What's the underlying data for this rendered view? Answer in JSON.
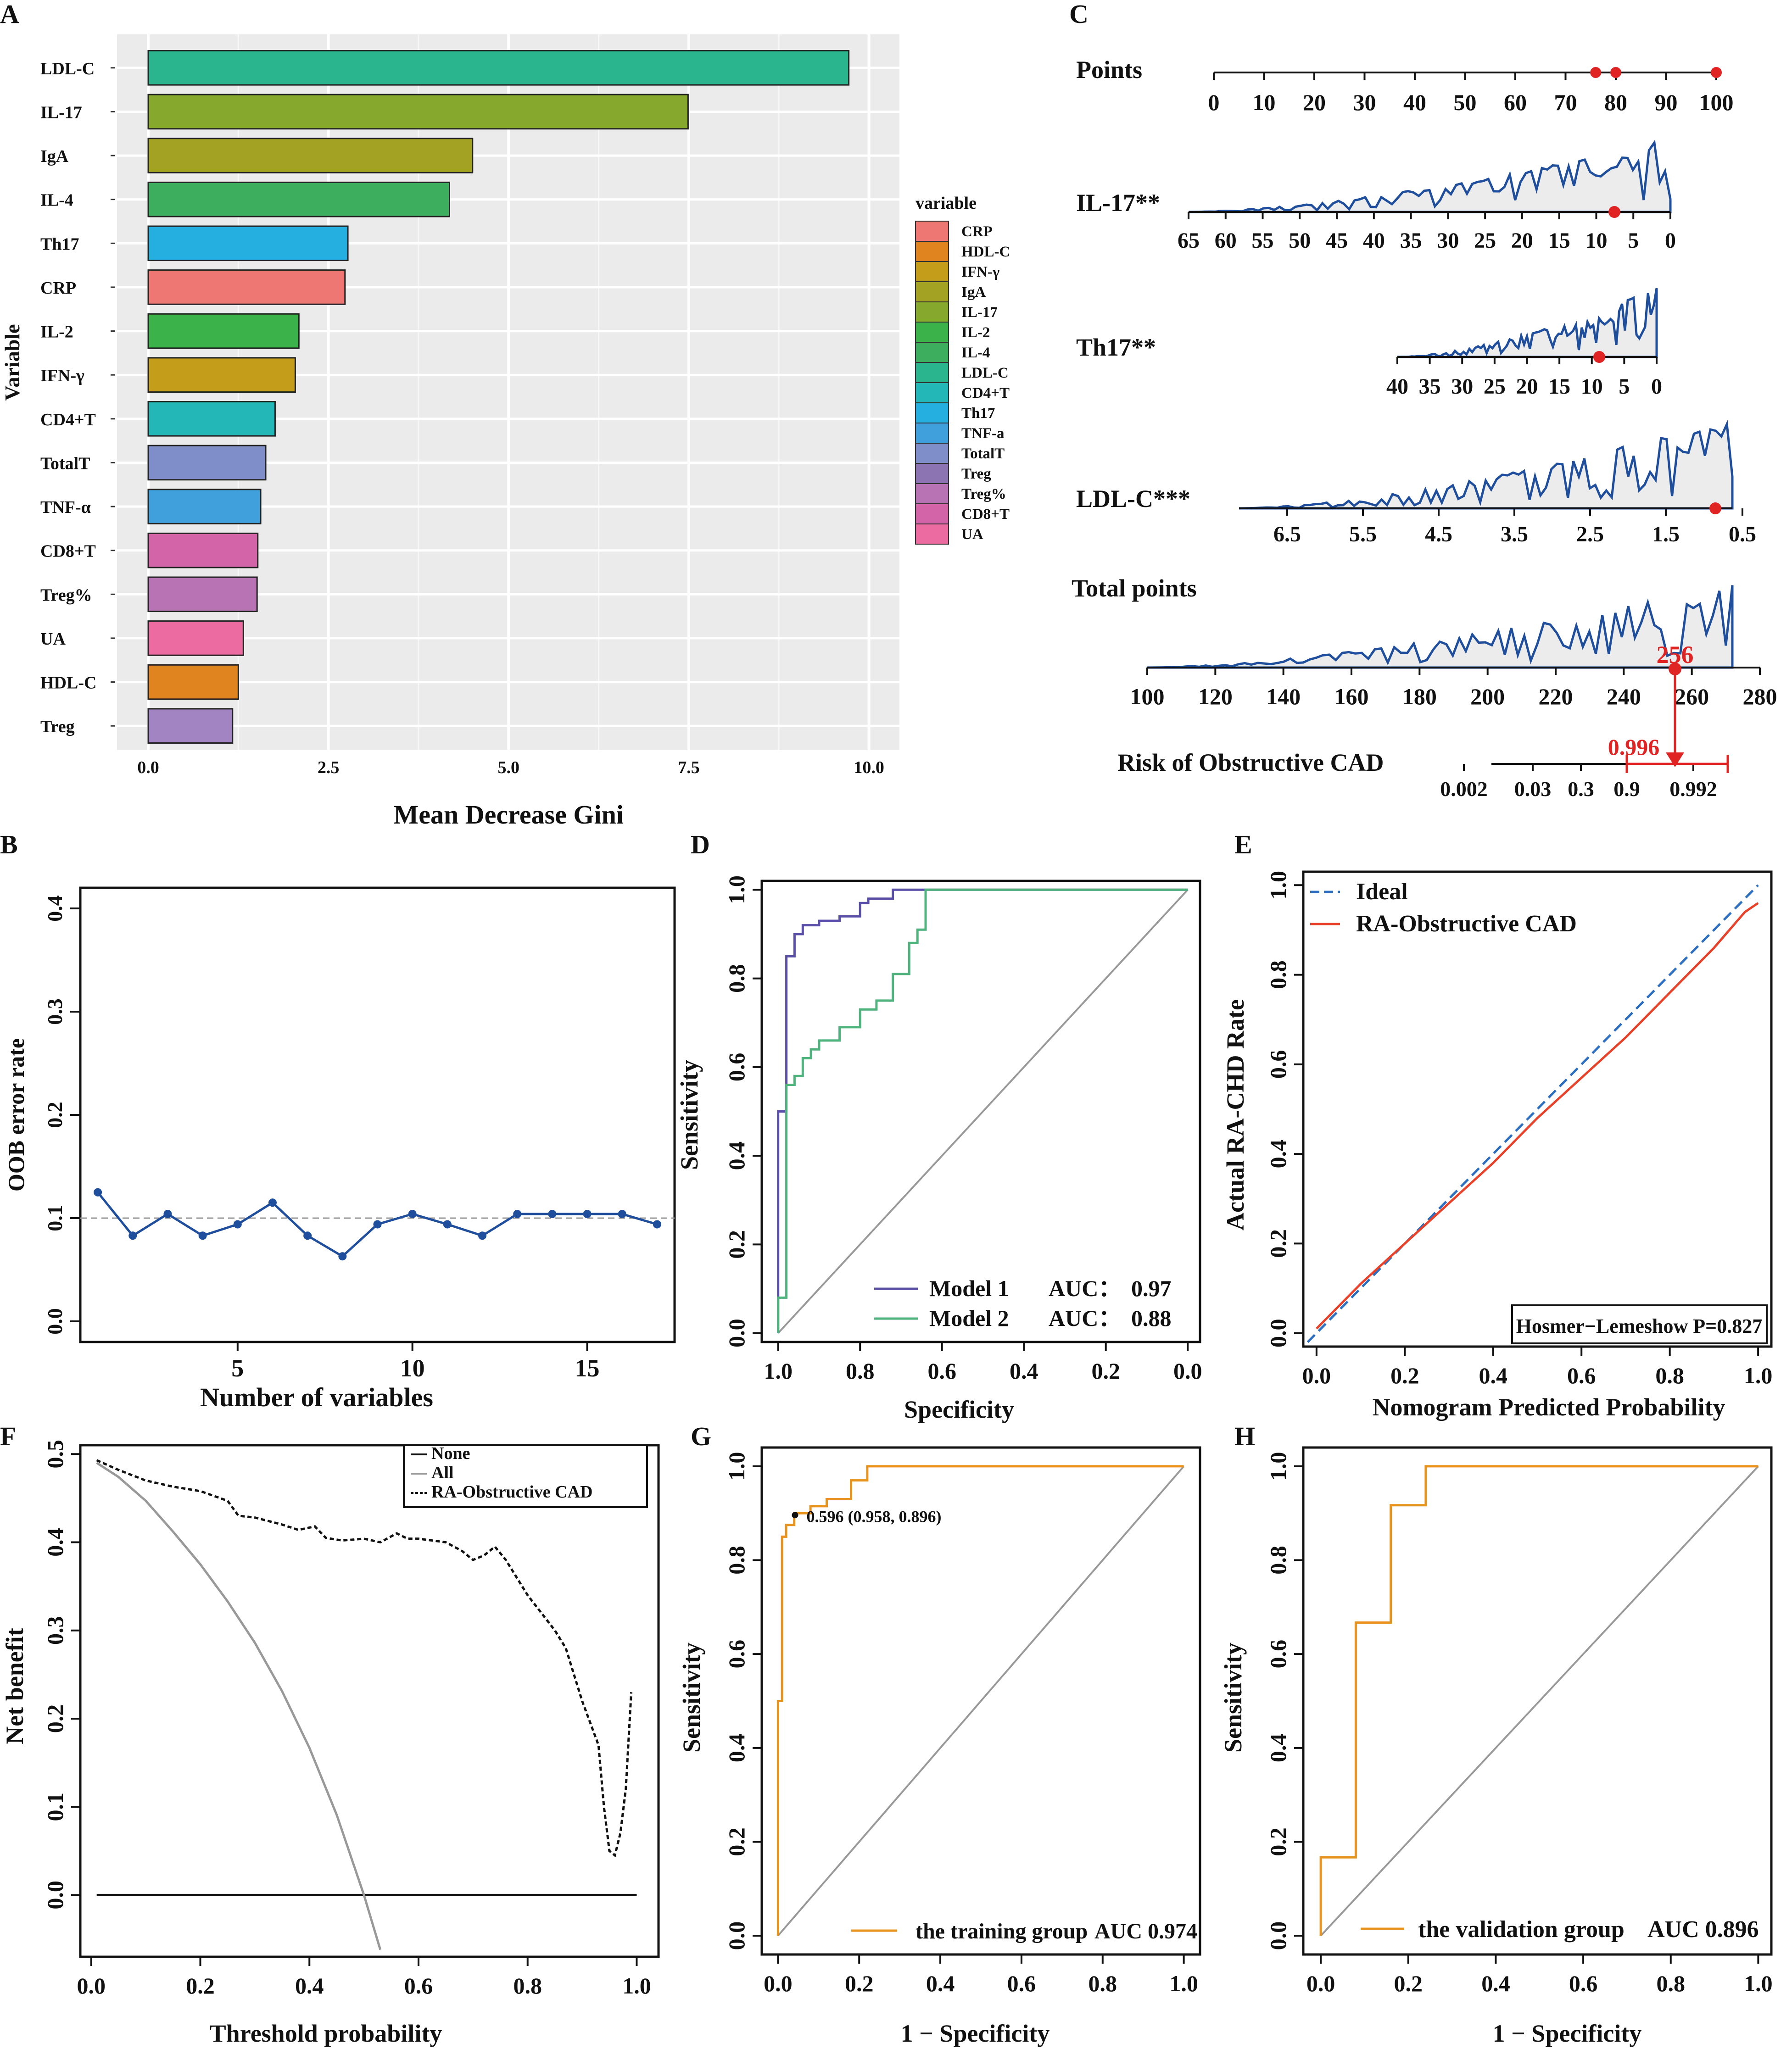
{
  "panel_labels": [
    "A",
    "B",
    "C",
    "D",
    "E",
    "F",
    "G",
    "H"
  ],
  "chart_data": [
    {
      "id": "A",
      "type": "bar",
      "orientation": "horizontal",
      "xlabel": "Mean Decrease Gini",
      "ylabel": "Variable",
      "xlim": [
        0,
        10
      ],
      "xticks": [
        0,
        2.5,
        5,
        7.5,
        10
      ],
      "xtick_labels": [
        "0.0",
        "2.5",
        "5.0",
        "7.5",
        "10.0"
      ],
      "categories": [
        "LDL-C",
        "IL-17",
        "IgA",
        "IL-4",
        "Th17",
        "CRP",
        "IL-2",
        "IFN-γ",
        "CD4+T",
        "TotalT",
        "TNF-α",
        "CD8+T",
        "Treg%",
        "UA",
        "HDL-C",
        "Treg"
      ],
      "values": [
        9.72,
        7.49,
        4.5,
        4.18,
        2.77,
        2.73,
        2.09,
        2.04,
        1.76,
        1.63,
        1.56,
        1.52,
        1.51,
        1.32,
        1.25,
        1.17
      ],
      "colors": [
        "#2bb58e",
        "#86a82c",
        "#a3a223",
        "#3cae5d",
        "#25aee0",
        "#ee7673",
        "#3bb24a",
        "#c49d1a",
        "#23b8b7",
        "#7f8ec8",
        "#3fa0dc",
        "#d464a8",
        "#b873b5",
        "#ec6ba0",
        "#e0841f",
        "#a184c1"
      ],
      "legend_title": "variable",
      "legend": [
        "CRP",
        "HDL-C",
        "IFN-γ",
        "IgA",
        "IL-17",
        "IL-2",
        "IL-4",
        "LDL-C",
        "CD4+T",
        "Th17",
        "TNF-a",
        "TotalT",
        "Treg",
        "Treg%",
        "CD8+T",
        "UA"
      ],
      "legend_colors": [
        "#ee7673",
        "#e0841f",
        "#c49d1a",
        "#a3a223",
        "#86a82c",
        "#3bb24a",
        "#3cae5d",
        "#2bb58e",
        "#23b8b7",
        "#25aee0",
        "#3fa0dc",
        "#7f8ec8",
        "#8c74b3",
        "#b873b5",
        "#d464a8",
        "#ec6ba0"
      ]
    },
    {
      "id": "B",
      "type": "line",
      "xlabel": "Number of variables",
      "ylabel": "OOB error rate",
      "xlim": [
        0.5,
        17.5
      ],
      "ylim": [
        0,
        0.4
      ],
      "xticks": [
        5,
        10,
        15
      ],
      "yticks": [
        0,
        0.1,
        0.2,
        0.3,
        0.4
      ],
      "ytick_labels": [
        "0.0",
        "0.1",
        "0.2",
        "0.3",
        "0.4"
      ],
      "x": [
        1,
        2,
        3,
        4,
        5,
        6,
        7,
        8,
        9,
        10,
        11,
        12,
        13,
        14,
        15,
        16,
        17
      ],
      "y": [
        0.125,
        0.083,
        0.104,
        0.083,
        0.094,
        0.115,
        0.083,
        0.063,
        0.094,
        0.104,
        0.094,
        0.083,
        0.104,
        0.104,
        0.104,
        0.104,
        0.094
      ],
      "reference_line": 0.1,
      "color": "#1f4e9c"
    },
    {
      "id": "C",
      "type": "nomogram",
      "rows": [
        {
          "label": "Points",
          "ticks": [
            "0",
            "10",
            "20",
            "30",
            "40",
            "50",
            "60",
            "70",
            "80",
            "90",
            "100"
          ]
        },
        {
          "label": "IL-17**",
          "ticks": [
            "65",
            "60",
            "55",
            "50",
            "45",
            "40",
            "35",
            "30",
            "25",
            "20",
            "15",
            "10",
            "5",
            "0"
          ]
        },
        {
          "label": "Th17**",
          "ticks": [
            "40",
            "35",
            "30",
            "25",
            "20",
            "15",
            "10",
            "5",
            "0"
          ]
        },
        {
          "label": "LDL-C***",
          "ticks": [
            "6.5",
            "5.5",
            "4.5",
            "3.5",
            "2.5",
            "1.5",
            "0.5"
          ]
        },
        {
          "label": "Total points",
          "ticks": [
            "100",
            "120",
            "140",
            "160",
            "180",
            "200",
            "220",
            "240",
            "260",
            "280"
          ]
        },
        {
          "label": "Risk of Obstructive CAD",
          "ticks": [
            "0.002",
            "0.03",
            "0.3",
            "0.9",
            "0.992"
          ]
        }
      ],
      "total_points_value": "256",
      "risk_value": "0.996",
      "points_markers": [
        76,
        80,
        100
      ],
      "highlight_color": "#e02424",
      "density_color": "#1f4e9c"
    },
    {
      "id": "D",
      "type": "line",
      "subtype": "roc",
      "xlabel": "Specificity",
      "ylabel": "Sensitivity",
      "xlim": [
        1,
        0
      ],
      "ylim": [
        0,
        1
      ],
      "xtick_labels": [
        "1.0",
        "0.8",
        "0.6",
        "0.4",
        "0.2",
        "0.0"
      ],
      "ytick_labels": [
        "0.0",
        "0.2",
        "0.4",
        "0.6",
        "0.8",
        "1.0"
      ],
      "series": [
        {
          "name": "Model 1",
          "auc_label": "AUC：",
          "auc": "0.97",
          "color": "#5a4fa8",
          "x": [
            1,
            1,
            0.98,
            0.98,
            0.96,
            0.96,
            0.94,
            0.94,
            0.9,
            0.9,
            0.85,
            0.85,
            0.8,
            0.8,
            0.78,
            0.78,
            0.72,
            0.72,
            0.65,
            0.65,
            0.62,
            0.6,
            0.4,
            0.2,
            0
          ],
          "y": [
            0,
            0.5,
            0.5,
            0.85,
            0.85,
            0.9,
            0.9,
            0.92,
            0.92,
            0.93,
            0.93,
            0.94,
            0.94,
            0.97,
            0.97,
            0.98,
            0.98,
            1,
            1,
            1,
            1,
            1,
            1,
            1,
            1
          ]
        },
        {
          "name": "Model 2",
          "auc_label": "AUC：",
          "auc": "0.88",
          "color": "#4fb37e",
          "x": [
            1,
            1,
            0.98,
            0.98,
            0.96,
            0.96,
            0.94,
            0.94,
            0.92,
            0.92,
            0.9,
            0.9,
            0.85,
            0.85,
            0.8,
            0.8,
            0.76,
            0.76,
            0.72,
            0.72,
            0.68,
            0.68,
            0.66,
            0.66,
            0.64,
            0.64,
            0.62,
            0.4,
            0.2,
            0
          ],
          "y": [
            0,
            0.08,
            0.08,
            0.56,
            0.56,
            0.58,
            0.58,
            0.62,
            0.62,
            0.64,
            0.64,
            0.66,
            0.66,
            0.69,
            0.69,
            0.73,
            0.73,
            0.75,
            0.75,
            0.81,
            0.81,
            0.88,
            0.88,
            0.91,
            0.91,
            1,
            1,
            1,
            1,
            1
          ]
        }
      ]
    },
    {
      "id": "E",
      "type": "line",
      "subtype": "calibration",
      "xlabel": "Nomogram Predicted Probability",
      "ylabel": "Actual RA-CHD Rate",
      "xlim": [
        0,
        1
      ],
      "ylim": [
        0,
        1
      ],
      "tick_labels": [
        "0.0",
        "0.2",
        "0.4",
        "0.6",
        "0.8",
        "1.0"
      ],
      "series": [
        {
          "name": "Ideal",
          "color": "#2c6fc1",
          "dash": true,
          "x": [
            -0.02,
            1
          ],
          "y": [
            -0.02,
            1
          ]
        },
        {
          "name": "RA-Obstructive CAD",
          "color": "#e8432a",
          "x": [
            0,
            0.1,
            0.2,
            0.3,
            0.4,
            0.5,
            0.6,
            0.7,
            0.8,
            0.9,
            0.97,
            1
          ],
          "y": [
            0.01,
            0.11,
            0.2,
            0.29,
            0.38,
            0.48,
            0.57,
            0.66,
            0.76,
            0.86,
            0.94,
            0.96
          ]
        }
      ],
      "annotation": "Hosmer−Lemeshow  P=0.827"
    },
    {
      "id": "F",
      "type": "line",
      "subtype": "decision_curve",
      "xlabel": "Threshold probability",
      "ylabel": "Net benefit",
      "xlim": [
        -0.02,
        1.04
      ],
      "ylim": [
        -0.07,
        0.51
      ],
      "xtick_labels": [
        "0.0",
        "0.2",
        "0.4",
        "0.6",
        "0.8",
        "1.0"
      ],
      "ytick_labels": [
        "0.0",
        "0.1",
        "0.2",
        "0.3",
        "0.4",
        "0.5"
      ],
      "series": [
        {
          "name": "None",
          "color": "#111",
          "x": [
            0.01,
            1
          ],
          "y": [
            0,
            0
          ]
        },
        {
          "name": "All",
          "color": "#999",
          "x": [
            0.01,
            0.05,
            0.1,
            0.15,
            0.2,
            0.25,
            0.3,
            0.35,
            0.4,
            0.45,
            0.5,
            0.53
          ],
          "y": [
            0.49,
            0.474,
            0.447,
            0.412,
            0.375,
            0.333,
            0.286,
            0.231,
            0.167,
            0.091,
            0,
            -0.062
          ]
        },
        {
          "name": "RA-Obstructive CAD",
          "color": "#111",
          "dotted": true,
          "x": [
            0.01,
            0.05,
            0.1,
            0.15,
            0.2,
            0.25,
            0.27,
            0.3,
            0.35,
            0.38,
            0.41,
            0.43,
            0.46,
            0.5,
            0.53,
            0.56,
            0.58,
            0.6,
            0.65,
            0.68,
            0.7,
            0.72,
            0.74,
            0.76,
            0.8,
            0.85,
            0.87,
            0.9,
            0.93,
            0.94,
            0.95,
            0.96,
            0.97,
            0.98,
            0.99
          ],
          "y": [
            0.493,
            0.482,
            0.47,
            0.463,
            0.458,
            0.447,
            0.43,
            0.428,
            0.42,
            0.414,
            0.418,
            0.405,
            0.402,
            0.404,
            0.4,
            0.41,
            0.404,
            0.404,
            0.4,
            0.39,
            0.38,
            0.385,
            0.395,
            0.38,
            0.34,
            0.3,
            0.28,
            0.22,
            0.17,
            0.1,
            0.05,
            0.045,
            0.07,
            0.12,
            0.23
          ]
        }
      ]
    },
    {
      "id": "G",
      "type": "line",
      "subtype": "roc",
      "xlabel": "1 − Specificity",
      "ylabel": "Sensitivity",
      "xlim": [
        0,
        1
      ],
      "ylim": [
        0,
        1
      ],
      "tick_labels": [
        "0.0",
        "0.2",
        "0.4",
        "0.6",
        "0.8",
        "1.0"
      ],
      "series": [
        {
          "name": "the training  group",
          "auc": "AUC 0.974",
          "color": "#e8931e",
          "x": [
            0,
            0,
            0.01,
            0.01,
            0.02,
            0.02,
            0.04,
            0.04,
            0.08,
            0.08,
            0.12,
            0.12,
            0.18,
            0.18,
            0.22,
            0.22,
            1
          ],
          "y": [
            0,
            0.5,
            0.5,
            0.85,
            0.85,
            0.875,
            0.875,
            0.9,
            0.9,
            0.915,
            0.915,
            0.93,
            0.93,
            0.97,
            0.97,
            1,
            1
          ]
        }
      ],
      "threshold_point": {
        "x": 0.042,
        "y": 0.896,
        "label": "0.596 (0.958, 0.896)"
      }
    },
    {
      "id": "H",
      "type": "line",
      "subtype": "roc",
      "xlabel": "1 − Specificity",
      "ylabel": "Sensitivity",
      "xlim": [
        0,
        1
      ],
      "ylim": [
        0,
        1
      ],
      "tick_labels": [
        "0.0",
        "0.2",
        "0.4",
        "0.6",
        "0.8",
        "1.0"
      ],
      "series": [
        {
          "name": "the validation group",
          "auc": "AUC 0.896",
          "color": "#e8931e",
          "x": [
            0,
            0,
            0.08,
            0.08,
            0.16,
            0.16,
            0.24,
            0.24,
            1
          ],
          "y": [
            0,
            0.167,
            0.167,
            0.667,
            0.667,
            0.917,
            0.917,
            1,
            1
          ]
        }
      ]
    }
  ]
}
